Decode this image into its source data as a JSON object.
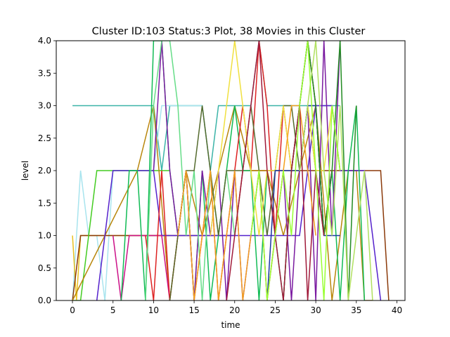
{
  "chart_data": {
    "type": "line",
    "title": "Cluster ID:103 Status:3 Plot, 38 Movies in this Cluster",
    "xlabel": "time",
    "ylabel": "level",
    "xlim": [
      -2,
      41
    ],
    "ylim": [
      0,
      4
    ],
    "grid": false,
    "x_ticks": [
      "0",
      "5",
      "10",
      "15",
      "20",
      "25",
      "30",
      "35",
      "40"
    ],
    "y_ticks": [
      "0.0",
      "0.5",
      "1.0",
      "1.5",
      "2.0",
      "2.5",
      "3.0",
      "3.5",
      "4.0"
    ],
    "series": [
      {
        "color": "#3cb4a8",
        "x": [
          0,
          9,
          10,
          11,
          12,
          13,
          14,
          15,
          16,
          17,
          18,
          19,
          20,
          21,
          22,
          23,
          24,
          25,
          26,
          27,
          28,
          29,
          30,
          31,
          32,
          33
        ],
        "y": [
          3,
          3,
          3,
          2,
          3,
          3,
          3,
          3,
          3,
          2,
          3,
          3,
          3,
          3,
          3,
          4,
          3,
          3,
          3,
          3,
          3,
          3,
          3,
          3,
          3,
          3
        ]
      },
      {
        "color": "#a8e4ee",
        "x": [
          0,
          1,
          2,
          3,
          4,
          5,
          6,
          7,
          8,
          9,
          10,
          11,
          12,
          13,
          14,
          15,
          16
        ],
        "y": [
          0,
          2,
          1,
          1,
          0,
          2,
          2,
          2,
          2,
          2,
          2,
          3,
          3,
          3,
          3,
          3,
          3
        ]
      },
      {
        "color": "#e8c020",
        "x": [
          0,
          0.5,
          1,
          2,
          3,
          4,
          5,
          6,
          7,
          8,
          9,
          10,
          11,
          12
        ],
        "y": [
          1,
          0,
          1,
          1,
          1,
          1,
          1,
          1,
          1,
          1,
          1,
          1,
          1,
          1
        ]
      },
      {
        "color": "#8b3a0a",
        "x": [
          0,
          1,
          2,
          3,
          4,
          5,
          6,
          7,
          8,
          9,
          10,
          11,
          12,
          13,
          14,
          15,
          16,
          17,
          18,
          19,
          20,
          21,
          22,
          23,
          24,
          25,
          26,
          27,
          28,
          29,
          30,
          31,
          32,
          33,
          34,
          35,
          36,
          37,
          38,
          39
        ],
        "y": [
          0,
          1,
          1,
          1,
          1,
          1,
          1,
          1,
          1,
          1,
          1,
          1,
          1,
          1,
          1,
          1,
          1,
          1,
          1,
          1,
          1,
          2,
          2,
          2,
          2,
          2,
          2,
          2,
          2,
          2,
          2,
          2,
          2,
          2,
          2,
          2,
          2,
          2,
          2,
          0
        ]
      },
      {
        "color": "#44cc22",
        "x": [
          0,
          1,
          2,
          3,
          4,
          5,
          6,
          7,
          8,
          9,
          10,
          11,
          12
        ],
        "y": [
          0,
          0,
          1,
          2,
          2,
          2,
          2,
          2,
          2,
          2,
          2,
          2,
          2
        ]
      },
      {
        "color": "#b8860b",
        "x": [
          0,
          8,
          10,
          12,
          14,
          16,
          18,
          20,
          22,
          24,
          26,
          28,
          30,
          32,
          34,
          35,
          36,
          37
        ],
        "y": [
          0,
          2,
          3,
          0,
          2,
          1,
          2,
          3,
          2,
          2,
          1,
          2,
          3,
          0,
          2,
          2,
          0,
          0
        ]
      },
      {
        "color": "#5522cc",
        "x": [
          3,
          4,
          5,
          6,
          7,
          8,
          9,
          10,
          11,
          12,
          13,
          14,
          15,
          16,
          17,
          18,
          19,
          20,
          21,
          22,
          23,
          24,
          25,
          26,
          27,
          28,
          29,
          30,
          31,
          32,
          33,
          34,
          35,
          36,
          37,
          38
        ],
        "y": [
          0,
          1,
          2,
          2,
          2,
          2,
          2,
          2,
          1,
          1,
          1,
          1,
          1,
          1,
          1,
          1,
          1,
          1,
          1,
          1,
          1,
          1,
          1,
          1,
          1,
          1,
          2,
          3,
          3,
          3,
          2,
          2,
          2,
          2,
          1,
          0
        ]
      },
      {
        "color": "#cc1188",
        "x": [
          5,
          6,
          7,
          8,
          9,
          10,
          11,
          12
        ],
        "y": [
          1,
          0,
          1,
          1,
          1,
          1,
          1,
          0
        ]
      },
      {
        "color": "#11bb55",
        "x": [
          6,
          7,
          8,
          9,
          10,
          11,
          12,
          13,
          14,
          15,
          16,
          17,
          18,
          19,
          20,
          21,
          22,
          23,
          24,
          25,
          26,
          27,
          28,
          29,
          30,
          31,
          32,
          33,
          34,
          35,
          36
        ],
        "y": [
          0,
          2,
          2,
          0,
          4,
          4,
          2,
          1,
          2,
          0,
          2,
          0,
          1,
          2,
          3,
          2,
          2,
          0,
          2,
          1,
          0,
          2,
          3,
          4,
          3,
          1,
          2,
          0,
          2,
          3,
          0
        ]
      },
      {
        "color": "#dd2222",
        "x": [
          9,
          10,
          11,
          12,
          13,
          14,
          15,
          16,
          17,
          18,
          19,
          20,
          21,
          22,
          23,
          24,
          25,
          26,
          27,
          28,
          29,
          30,
          31,
          32
        ],
        "y": [
          1,
          0,
          2,
          0,
          1,
          2,
          0,
          1,
          2,
          0,
          1,
          2,
          3,
          2,
          4,
          3,
          1,
          3,
          2,
          3,
          4,
          3,
          1,
          2
        ]
      },
      {
        "color": "#7a1aa0",
        "x": [
          10,
          11,
          12,
          13,
          14,
          15,
          16,
          17,
          18,
          19,
          20,
          21,
          22,
          23,
          24,
          25,
          26,
          27,
          28,
          29,
          30,
          31,
          32,
          33
        ],
        "y": [
          2,
          4,
          2,
          1,
          2,
          0,
          2,
          1,
          2,
          0,
          2,
          0,
          1,
          2,
          0,
          1,
          2,
          0,
          2,
          3,
          0,
          4,
          1,
          4
        ]
      },
      {
        "color": "#66dd88",
        "x": [
          9,
          10,
          11,
          12,
          13,
          14,
          15,
          16,
          17,
          18,
          19,
          20
        ],
        "y": [
          0,
          3,
          4,
          4,
          3,
          1,
          2,
          0,
          2,
          1,
          2,
          1
        ]
      },
      {
        "color": "#556b2f",
        "x": [
          12,
          13,
          14,
          15,
          16,
          17,
          18,
          19,
          20,
          21,
          22,
          23,
          24,
          25,
          26,
          27,
          28,
          29,
          30,
          31
        ],
        "y": [
          0,
          1,
          2,
          2,
          3,
          2,
          1,
          2,
          2,
          2,
          3,
          2,
          1,
          2,
          3,
          3,
          2,
          3,
          2,
          1
        ]
      },
      {
        "color": "#f0e040",
        "x": [
          17,
          18,
          19,
          20,
          21,
          22,
          23,
          24,
          25,
          26,
          27,
          28,
          29,
          30,
          31,
          32,
          33
        ],
        "y": [
          1,
          2,
          3,
          4,
          3,
          2,
          1,
          2,
          2,
          3,
          2,
          2,
          3,
          2,
          2,
          3,
          2
        ]
      },
      {
        "color": "#1a3aa0",
        "x": [
          24,
          25,
          26,
          27,
          28,
          29,
          30,
          31,
          32,
          33
        ],
        "y": [
          0,
          2,
          2,
          2,
          2,
          3,
          3,
          1,
          1,
          1
        ]
      },
      {
        "color": "#f4a020",
        "x": [
          13,
          14,
          15,
          16,
          17,
          18,
          19,
          20,
          21,
          22,
          23,
          24,
          25,
          26,
          27,
          28,
          29,
          30
        ],
        "y": [
          1,
          2,
          0,
          1,
          2,
          0,
          1,
          2,
          0,
          1,
          2,
          0,
          1,
          2,
          3,
          3,
          2,
          1
        ]
      },
      {
        "color": "#228b22",
        "x": [
          26,
          27,
          28,
          29,
          30,
          31,
          32,
          33,
          34,
          35
        ],
        "y": [
          0,
          2,
          3,
          4,
          3,
          1,
          2,
          4,
          0,
          3
        ]
      },
      {
        "color": "#b0e060",
        "x": [
          28,
          29,
          30,
          31,
          32,
          33,
          34,
          35,
          36,
          37
        ],
        "y": [
          2,
          3,
          4,
          2,
          1,
          3,
          0,
          1,
          2,
          0
        ]
      },
      {
        "color": "#a01a3a",
        "x": [
          19,
          20,
          21,
          22,
          23,
          24,
          25,
          26,
          27,
          28,
          29,
          30,
          31
        ],
        "y": [
          0,
          1,
          2,
          3,
          4,
          2,
          1,
          0,
          2,
          3,
          0,
          2,
          1
        ]
      },
      {
        "color": "#99ff33",
        "x": [
          22,
          23,
          24,
          25,
          26,
          27,
          28,
          29,
          30,
          31,
          32,
          33
        ],
        "y": [
          1,
          2,
          0,
          1,
          2,
          1,
          3,
          4,
          2,
          0,
          3,
          2
        ]
      }
    ]
  }
}
